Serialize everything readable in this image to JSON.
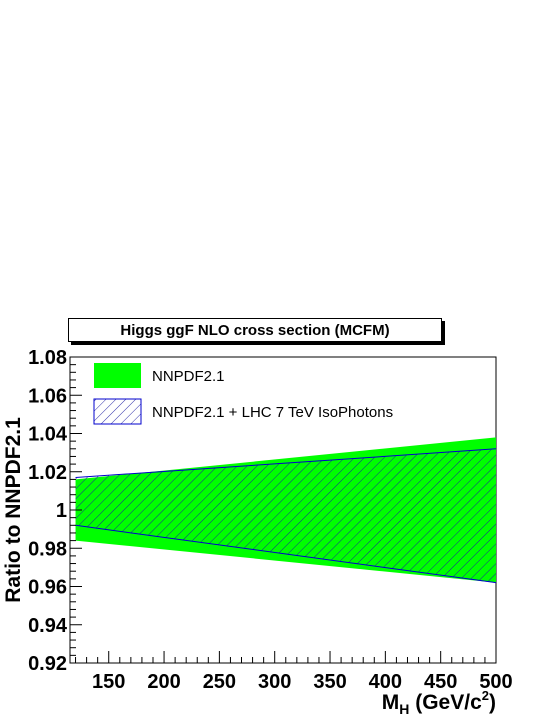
{
  "chart_data": {
    "type": "area",
    "title": "Higgs ggF NLO cross section (MCFM)",
    "xlabel": "M",
    "xlabel_sub": "H",
    "xlabel_unit_prefix": " (GeV/c",
    "xlabel_unit_sup": "2",
    "xlabel_unit_suffix": ")",
    "ylabel": "Ratio to NNPDF2.1",
    "xlim": [
      115,
      500
    ],
    "ylim": [
      0.92,
      1.08
    ],
    "x_ticks": [
      150,
      200,
      250,
      300,
      350,
      400,
      450,
      500
    ],
    "x_tick_labels": [
      "150",
      "200",
      "250",
      "300",
      "350",
      "400",
      "450",
      "500"
    ],
    "y_ticks": [
      0.92,
      0.94,
      0.96,
      0.98,
      1.0,
      1.02,
      1.04,
      1.06,
      1.08
    ],
    "y_tick_labels": [
      "0.92",
      "0.94",
      "0.96",
      "0.98",
      "1",
      "1.02",
      "1.04",
      "1.06",
      "1.08"
    ],
    "legend_position": "top-left",
    "grid": false,
    "x": [
      120,
      500
    ],
    "series": [
      {
        "name": "NNPDF2.1",
        "style": "solid-fill",
        "color": "#00ff00",
        "upper": [
          1.016,
          1.038
        ],
        "lower": [
          0.984,
          0.962
        ]
      },
      {
        "name": "NNPDF2.1 + LHC 7 TeV IsoPhotons",
        "style": "hatched",
        "color": "#0000cc",
        "upper": [
          1.017,
          1.032
        ],
        "lower": [
          0.992,
          0.962
        ]
      }
    ]
  }
}
